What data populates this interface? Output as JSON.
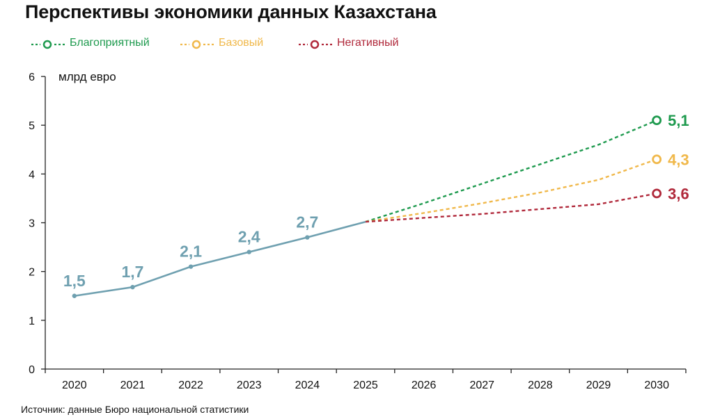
{
  "title": "Перспективы экономики данных Казахстана",
  "unit_label": "млрд евро",
  "source": "Источник: данные Бюро национальной статистики",
  "colors": {
    "historical": "#6fa0b0",
    "favorable": "#1e9a4e",
    "base": "#f0b84a",
    "negative": "#b0283a",
    "axis": "#222222"
  },
  "legend": [
    {
      "label": "Благоприятный",
      "color": "#1e9a4e"
    },
    {
      "label": "Базовый",
      "color": "#f0b84a"
    },
    {
      "label": "Негативный",
      "color": "#b0283a"
    }
  ],
  "chart_data": {
    "type": "line",
    "title": "Перспективы экономики данных Казахстана",
    "ylabel": "млрд евро",
    "xlabel": "",
    "ylim": [
      0,
      6
    ],
    "yticks": [
      0,
      1,
      2,
      3,
      4,
      5,
      6
    ],
    "categories": [
      "2020",
      "2021",
      "2022",
      "2023",
      "2024",
      "2025",
      "2026",
      "2027",
      "2028",
      "2029",
      "2030"
    ],
    "historical": {
      "x": [
        "2020",
        "2021",
        "2022",
        "2023",
        "2024",
        "2025"
      ],
      "values": [
        1.5,
        1.68,
        2.1,
        2.4,
        2.7,
        3.02
      ],
      "labels": [
        "1,5",
        "1,7",
        "2,1",
        "2,4",
        "2,7",
        ""
      ]
    },
    "series": [
      {
        "name": "Благоприятный",
        "x": [
          "2025",
          "2026",
          "2027",
          "2028",
          "2029",
          "2030"
        ],
        "values": [
          3.02,
          3.4,
          3.8,
          4.2,
          4.6,
          5.1
        ],
        "end_label": "5,1"
      },
      {
        "name": "Базовый",
        "x": [
          "2025",
          "2026",
          "2027",
          "2028",
          "2029",
          "2030"
        ],
        "values": [
          3.02,
          3.2,
          3.4,
          3.62,
          3.88,
          4.3
        ],
        "end_label": "4,3"
      },
      {
        "name": "Негативный",
        "x": [
          "2025",
          "2026",
          "2027",
          "2028",
          "2029",
          "2030"
        ],
        "values": [
          3.02,
          3.1,
          3.18,
          3.28,
          3.38,
          3.6
        ],
        "end_label": "3,6"
      }
    ],
    "grid": false,
    "legend_position": "top-left"
  }
}
